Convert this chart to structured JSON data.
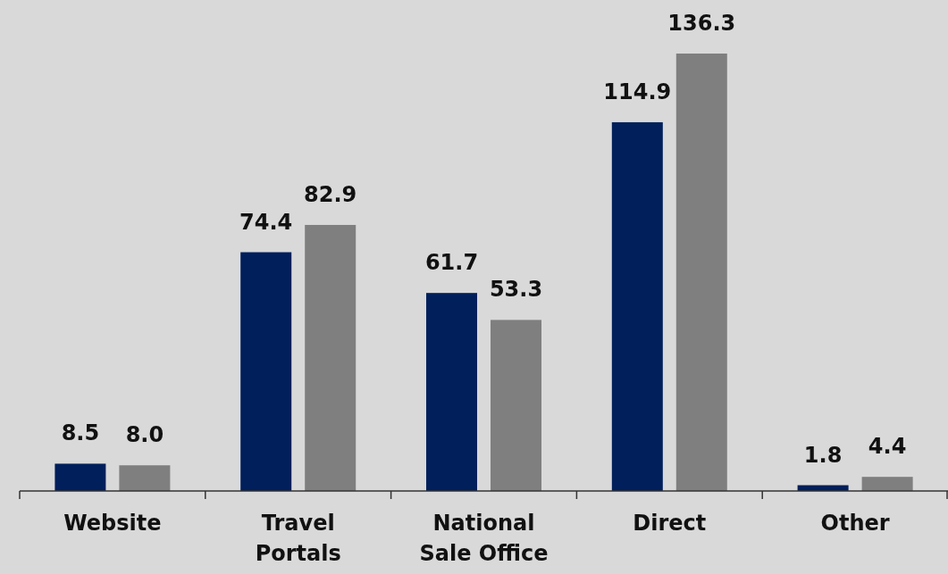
{
  "chart_data": {
    "type": "bar",
    "categories": [
      "Website",
      "Travel Portals",
      "National Sale Office",
      "Direct",
      "Other"
    ],
    "series": [
      {
        "color": "#001f5b",
        "values": [
          8.5,
          74.4,
          61.7,
          114.9,
          1.8
        ],
        "value_labels": [
          "8.5",
          "74.4",
          "61.7",
          "114.9",
          "1.8"
        ]
      },
      {
        "color": "#7f7f7f",
        "values": [
          8.0,
          82.9,
          53.3,
          136.3,
          4.4
        ],
        "value_labels": [
          "8.0",
          "82.9",
          "53.3",
          "136.3",
          "4.4"
        ]
      }
    ],
    "grid": false
  }
}
